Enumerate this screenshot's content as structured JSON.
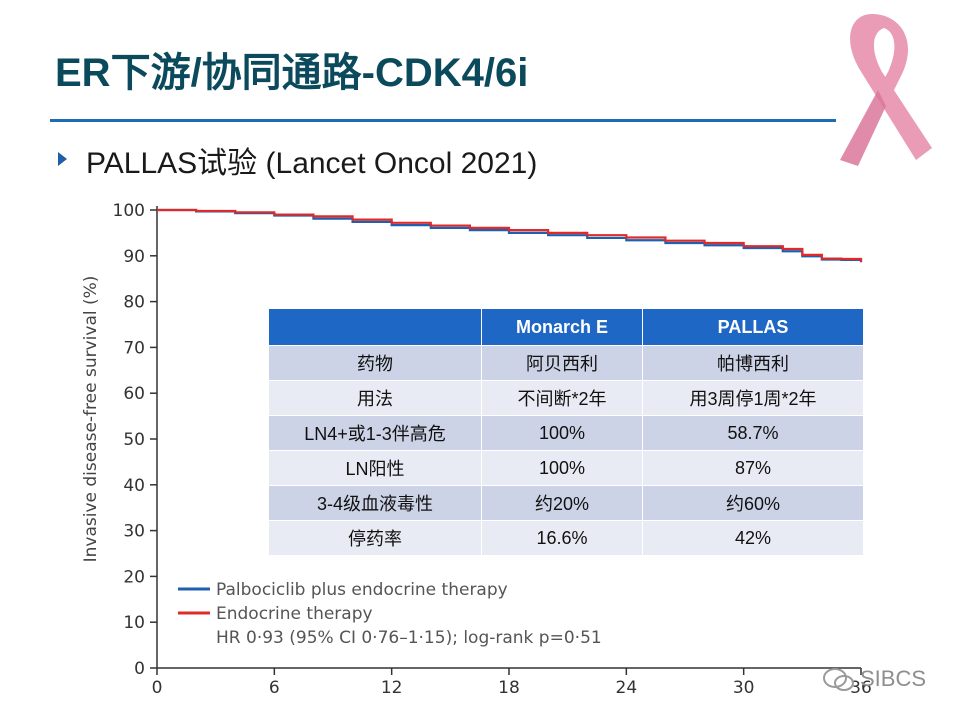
{
  "slide": {
    "title": "ER下游/协同通路-CDK4/6i",
    "subtitle": "PALLAS试验 (Lancet Oncol 2021)",
    "watermark": "SIBCS",
    "ribbon_color": "#e68aa8",
    "accent_color": "#1f6bb3"
  },
  "table": {
    "headers": [
      "",
      "Monarch E",
      "PALLAS"
    ],
    "rows": [
      [
        "药物",
        "阿贝西利",
        "帕博西利"
      ],
      [
        "用法",
        "不间断*2年",
        "用3周停1周*2年"
      ],
      [
        "LN4+或1-3伴高危",
        "100%",
        "58.7%"
      ],
      [
        "LN阳性",
        "100%",
        "87%"
      ],
      [
        "3-4级血液毒性",
        "约20%",
        "约60%"
      ],
      [
        "停药率",
        "16.6%",
        "42%"
      ]
    ]
  },
  "chart_data": {
    "type": "line",
    "ylabel": "Invasive disease-free survival (%)",
    "xlabel": "",
    "xlim": [
      0,
      36
    ],
    "ylim": [
      0,
      100
    ],
    "xticks": [
      "0",
      "6",
      "12",
      "18",
      "24",
      "30",
      "36"
    ],
    "yticks": [
      "0",
      "10",
      "20",
      "30",
      "40",
      "50",
      "60",
      "70",
      "80",
      "90",
      "100"
    ],
    "annotation": "HR 0·93 (95% CI 0·76–1·15); log-rank p=0·51",
    "series": [
      {
        "name": "Palbociclib plus endocrine therapy",
        "color": "#1f5fb0",
        "x": [
          0,
          2,
          4,
          6,
          8,
          10,
          12,
          14,
          16,
          18,
          20,
          22,
          24,
          26,
          28,
          30,
          32,
          33,
          34,
          35,
          36
        ],
        "y": [
          100,
          99.7,
          99.3,
          98.8,
          98.1,
          97.4,
          96.7,
          96.1,
          95.6,
          95.0,
          94.5,
          93.9,
          93.4,
          92.8,
          92.3,
          91.7,
          91.0,
          89.9,
          89.2,
          89.1,
          88.6
        ]
      },
      {
        "name": "Endocrine therapy",
        "color": "#e02a2a",
        "x": [
          0,
          2,
          4,
          6,
          8,
          10,
          12,
          14,
          16,
          18,
          20,
          22,
          24,
          26,
          28,
          30,
          32,
          33,
          34,
          35,
          36
        ],
        "y": [
          100,
          99.8,
          99.5,
          99.0,
          98.6,
          97.9,
          97.2,
          96.6,
          96.1,
          95.6,
          95.0,
          94.5,
          94.0,
          93.3,
          92.8,
          92.1,
          91.5,
          90.2,
          89.4,
          89.3,
          88.7
        ]
      }
    ]
  }
}
